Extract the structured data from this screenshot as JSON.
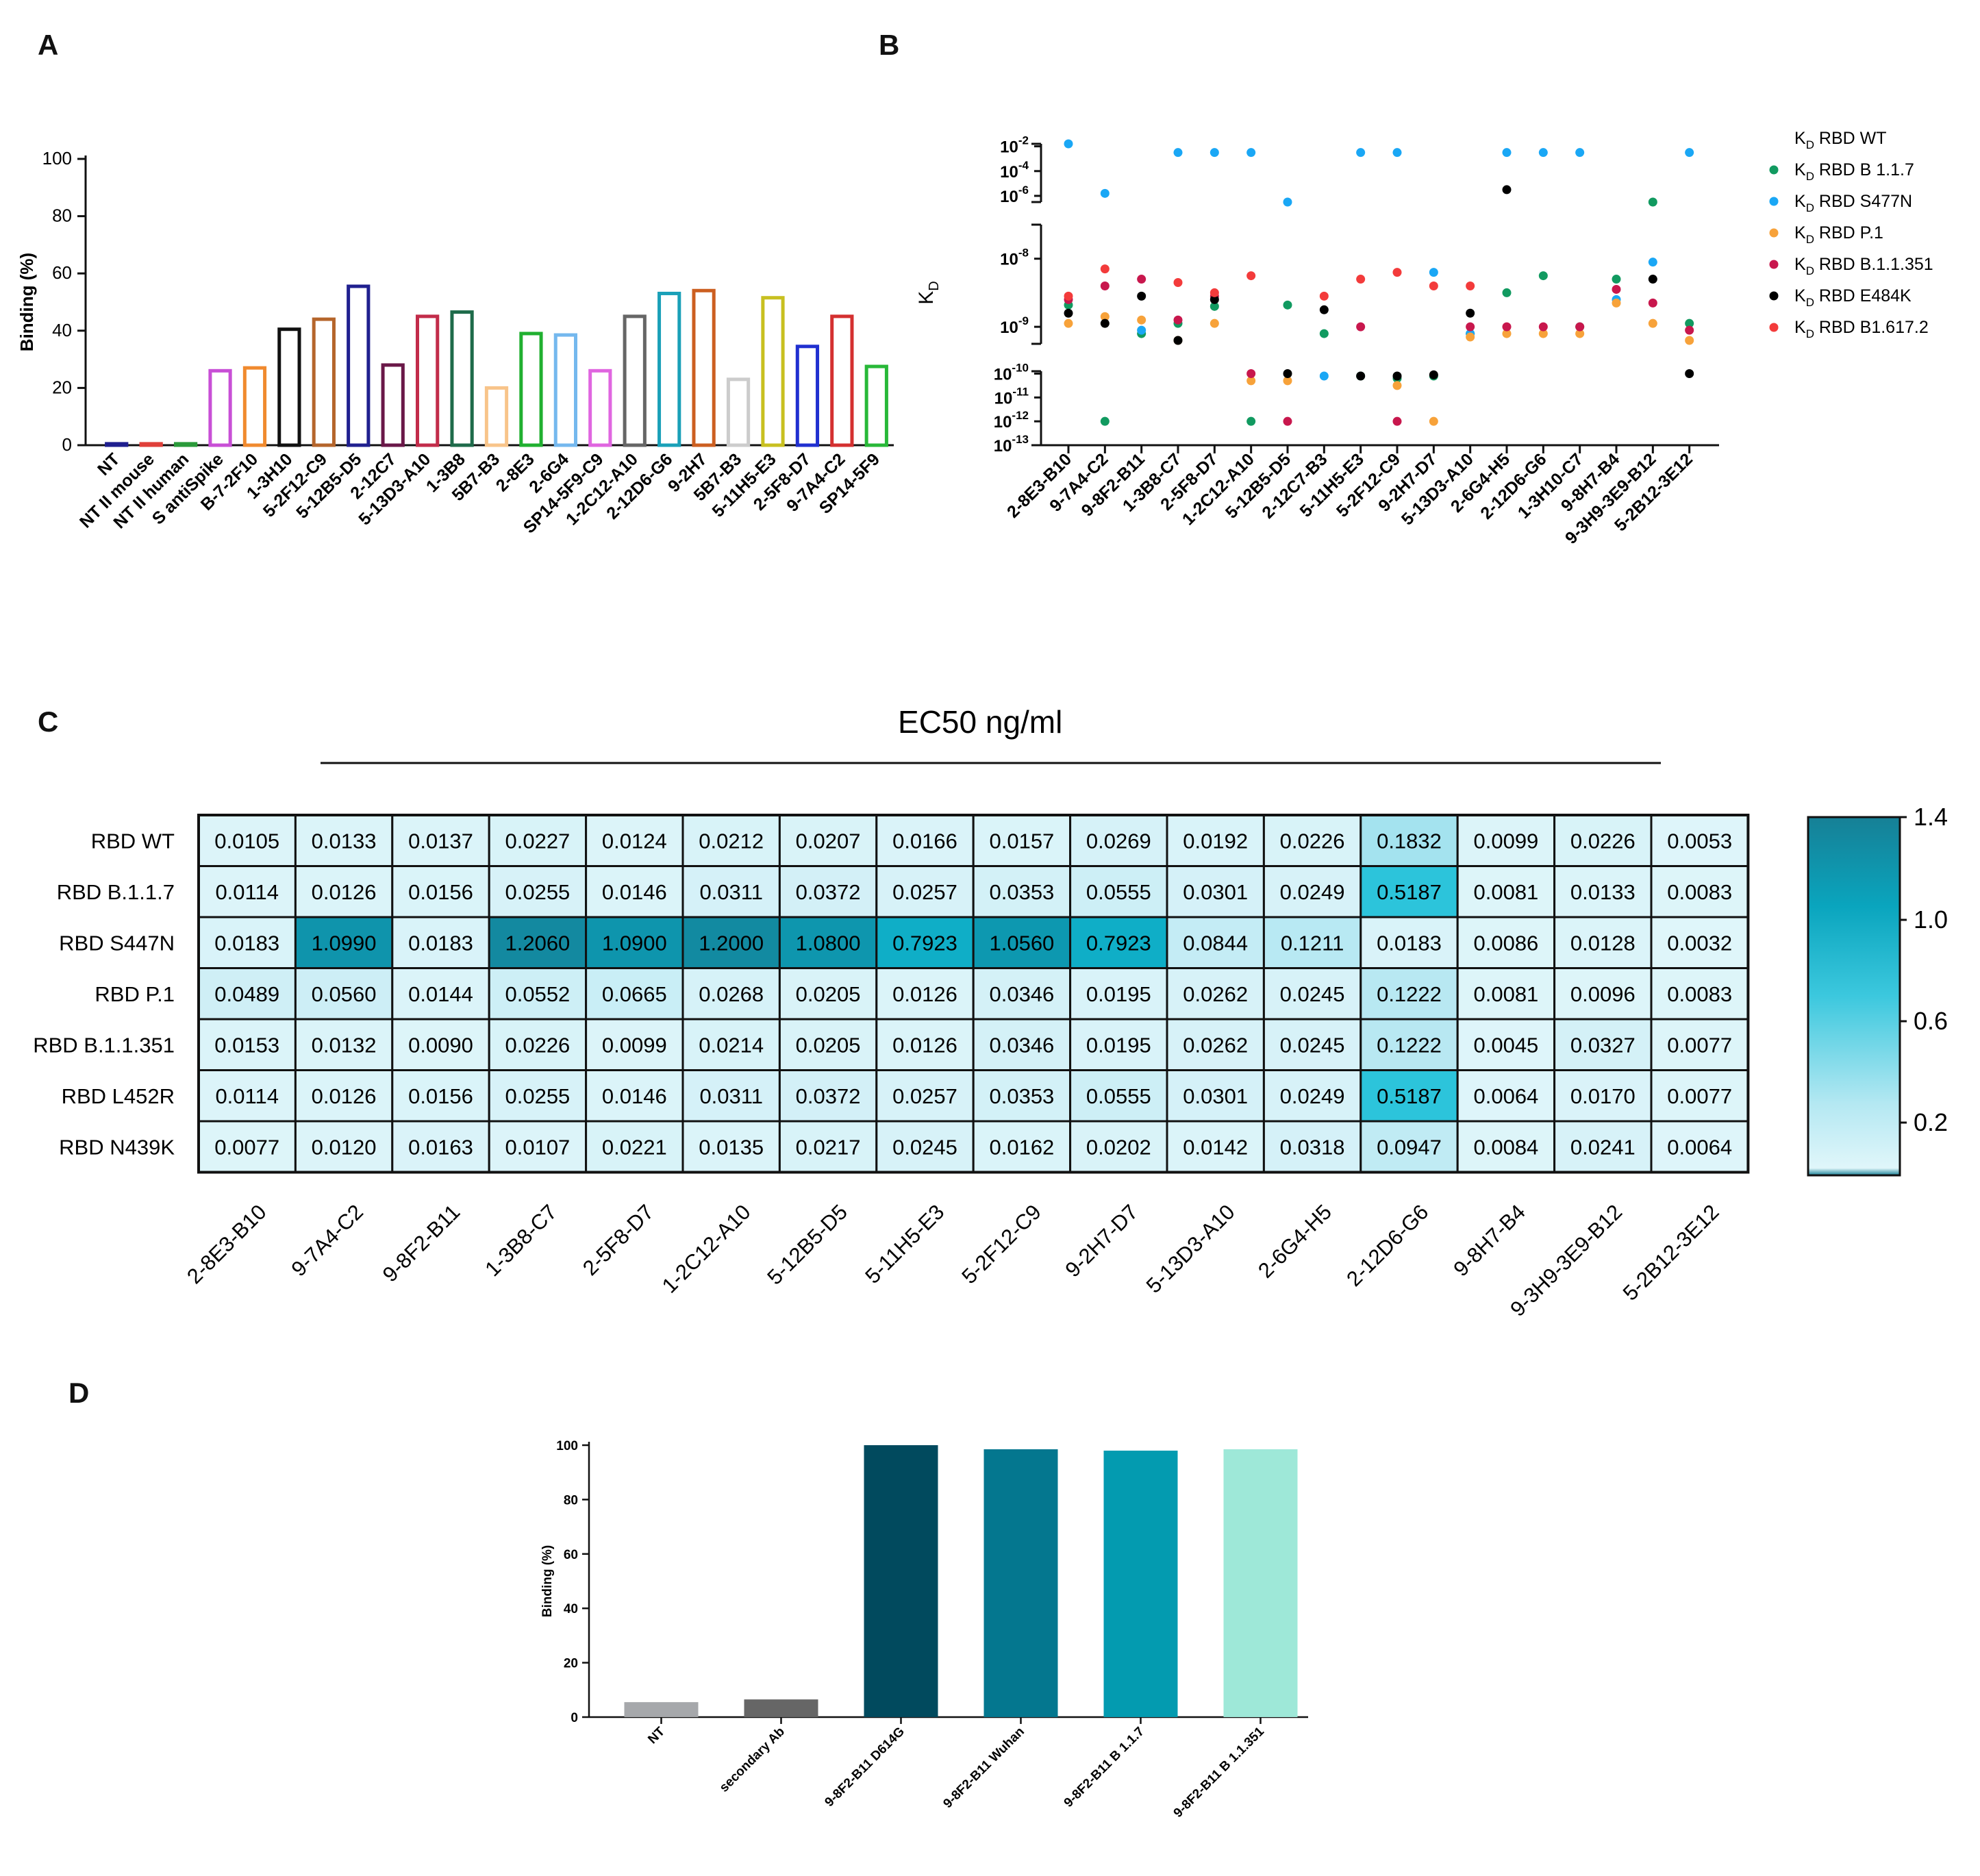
{
  "panels": {
    "a": "A",
    "b": "B",
    "c": "C",
    "d": "D"
  },
  "chart_data": [
    {
      "id": "A",
      "type": "bar",
      "ylabel": "Binding  (%)",
      "ylim": [
        0,
        100
      ],
      "yticks": [
        0,
        20,
        40,
        60,
        80,
        100
      ],
      "categories": [
        "NT",
        "NT II mouse",
        "NT II human",
        "S antiSpike",
        "B-7-2F10",
        "1-3H10",
        "5-2F12-C9",
        "5-12B5-D5",
        "2-12C7",
        "5-13D3-A10",
        "1-3B8",
        "5B7-B3",
        "2-8E3",
        "2-6G4",
        "SP14-5F9-C9",
        "1-2C12-A10",
        "2-12D6-G6",
        "9-2H7",
        "5B7-B3",
        "5-11H5-E3",
        "2-5F8-D7",
        "9-7A4-C2",
        "SP14-5F9"
      ],
      "values": [
        0.5,
        0.5,
        0.5,
        26,
        27,
        40.5,
        44,
        55.5,
        28,
        45,
        46.5,
        20,
        39,
        38.5,
        26,
        45,
        53,
        54,
        23,
        51.5,
        34.5,
        45,
        27.5
      ],
      "colors": [
        "#1f1f8f",
        "#e0403a",
        "#2a9a3a",
        "#c84fd6",
        "#f08a2e",
        "#111111",
        "#b5652b",
        "#20208f",
        "#6a1848",
        "#c22c4a",
        "#1e6b4a",
        "#f8c48a",
        "#20b030",
        "#74b8ee",
        "#e066e0",
        "#666666",
        "#1aa0b8",
        "#cc5f20",
        "#cccccc",
        "#c8c020",
        "#2030d0",
        "#d43030",
        "#28b838"
      ]
    },
    {
      "id": "B",
      "type": "scatter",
      "ylabel": "K_D",
      "categories": [
        "2-8E3-B10",
        "9-7A4-C2",
        "9-8F2-B11",
        "1-3B8-C7",
        "2-5F8-D7",
        "1-2C12-A10",
        "5-12B5-D5",
        "2-12C7-B3",
        "5-11H5-E3",
        "5-2F12-C9",
        "9-2H7-D7",
        "5-13D3-A10",
        "2-6G4-H5",
        "2-12D6-G6",
        "1-3H10-C7",
        "9-8H7-B4",
        "9-3H9-3E9-B12",
        "5-2B12-3E12"
      ],
      "yticks": [
        "10-2",
        "10-4",
        "10-6",
        "10-8",
        "10-9",
        "10-10",
        "10-11",
        "10-12",
        "10-13"
      ],
      "legend": [
        {
          "name": "RBD WT",
          "color": "#ffffff"
        },
        {
          "name": "RBD B 1.1.7",
          "color": "#119a60"
        },
        {
          "name": "RBD S477N",
          "color": "#1aa7f5"
        },
        {
          "name": "RBD P.1",
          "color": "#f7a23a"
        },
        {
          "name": "RBD B.1.1.351",
          "color": "#c8174d"
        },
        {
          "name": "RBD E484K",
          "color": "#000000"
        },
        {
          "name": "RBD B1.617.2",
          "color": "#f33b3b"
        }
      ],
      "legend_prefix": "K",
      "legend_sub": "D",
      "series": [
        {
          "name": "RBD B 1.1.7",
          "log10": [
            -8.68,
            -12,
            -9.1,
            -8.95,
            -8.7,
            -12,
            -8.68,
            -9.1,
            -10.1,
            -10.2,
            -10.1,
            -9.1,
            -8.5,
            -8.25,
            -9.0,
            -8.3,
            -6.5,
            -8.95
          ]
        },
        {
          "name": "RBD S477N",
          "log10": [
            -1.8,
            -5.8,
            -9.05,
            -2.5,
            -2.5,
            -2.5,
            -6.5,
            -10.1,
            -2.5,
            -2.5,
            -8.2,
            -9.1,
            -2.5,
            -2.5,
            -2.5,
            -8.6,
            -8.05,
            -2.5
          ]
        },
        {
          "name": "RBD P.1",
          "log10": [
            -8.95,
            -8.85,
            -8.9,
            -9.2,
            -8.95,
            -10.3,
            -10.3,
            null,
            null,
            -10.5,
            -12,
            -9.15,
            -9.1,
            -9.1,
            -9.1,
            -8.65,
            -8.95,
            -9.2
          ]
        },
        {
          "name": "RBD B.1.1.351",
          "log10": [
            -8.6,
            -8.4,
            -8.3,
            -8.9,
            -8.55,
            -10.0,
            -12,
            null,
            -9.0,
            -12,
            null,
            -9.0,
            -9.0,
            -9.0,
            -9.0,
            -8.45,
            -8.65,
            -9.05
          ]
        },
        {
          "name": "RBD E484K",
          "log10": [
            -8.8,
            -8.95,
            -8.55,
            -9.2,
            -8.6,
            null,
            -10.0,
            -8.75,
            -10.1,
            -10.1,
            -10.05,
            -8.8,
            -5.5,
            null,
            null,
            null,
            -8.3,
            -10.0
          ]
        },
        {
          "name": "RBD B1.617.2",
          "log10": [
            -8.55,
            -8.15,
            null,
            -8.35,
            -8.5,
            -8.25,
            null,
            -8.55,
            -8.3,
            -8.2,
            -8.4,
            -8.4,
            null,
            null,
            null,
            null,
            null,
            null
          ]
        }
      ]
    },
    {
      "id": "C",
      "type": "heatmap",
      "title": "EC50 ng/ml",
      "rows": [
        "RBD WT",
        "RBD B.1.1.7",
        "RBD S447N",
        "RBD P.1",
        "RBD B.1.1.351",
        "RBD L452R",
        "RBD N439K"
      ],
      "columns": [
        "2-8E3-B10",
        "9-7A4-C2",
        "9-8F2-B11",
        "1-3B8-C7",
        "2-5F8-D7",
        "1-2C12-A10",
        "5-12B5-D5",
        "5-11H5-E3",
        "5-2F12-C9",
        "9-2H7-D7",
        "5-13D3-A10",
        "2-6G4-H5",
        "2-12D6-G6",
        "9-8H7-B4",
        "9-3H9-3E9-B12",
        "5-2B12-3E12"
      ],
      "values": [
        [
          "0.0105",
          "0.0133",
          "0.0137",
          "0.0227",
          "0.0124",
          "0.0212",
          "0.0207",
          "0.0166",
          "0.0157",
          "0.0269",
          "0.0192",
          "0.0226",
          "0.1832",
          "0.0099",
          "0.0226",
          "0.0053"
        ],
        [
          "0.0114",
          "0.0126",
          "0.0156",
          "0.0255",
          "0.0146",
          "0.0311",
          "0.0372",
          "0.0257",
          "0.0353",
          "0.0555",
          "0.0301",
          "0.0249",
          "0.5187",
          "0.0081",
          "0.0133",
          "0.0083"
        ],
        [
          "0.0183",
          "1.0990",
          "0.0183",
          "1.2060",
          "1.0900",
          "1.2000",
          "1.0800",
          "0.7923",
          "1.0560",
          "0.7923",
          "0.0844",
          "0.1211",
          "0.0183",
          "0.0086",
          "0.0128",
          "0.0032"
        ],
        [
          "0.0489",
          "0.0560",
          "0.0144",
          "0.0552",
          "0.0665",
          "0.0268",
          "0.0205",
          "0.0126",
          "0.0346",
          "0.0195",
          "0.0262",
          "0.0245",
          "0.1222",
          "0.0081",
          "0.0096",
          "0.0083"
        ],
        [
          "0.0153",
          "0.0132",
          "0.0090",
          "0.0226",
          "0.0099",
          "0.0214",
          "0.0205",
          "0.0126",
          "0.0346",
          "0.0195",
          "0.0262",
          "0.0245",
          "0.1222",
          "0.0045",
          "0.0327",
          "0.0077"
        ],
        [
          "0.0114",
          "0.0126",
          "0.0156",
          "0.0255",
          "0.0146",
          "0.0311",
          "0.0372",
          "0.0257",
          "0.0353",
          "0.0555",
          "0.0301",
          "0.0249",
          "0.5187",
          "0.0064",
          "0.0170",
          "0.0077"
        ],
        [
          "0.0077",
          "0.0120",
          "0.0163",
          "0.0107",
          "0.0221",
          "0.0135",
          "0.0217",
          "0.0245",
          "0.0162",
          "0.0202",
          "0.0142",
          "0.0318",
          "0.0947",
          "0.0084",
          "0.0241",
          "0.0064"
        ]
      ],
      "colorbar_ticks": [
        "1.4",
        "1.0",
        "0.6",
        "0.2"
      ]
    },
    {
      "id": "D",
      "type": "bar",
      "ylabel": "Binding (%)",
      "ylim": [
        0,
        100
      ],
      "yticks": [
        0,
        20,
        40,
        60,
        80,
        100
      ],
      "categories": [
        "NT",
        "secondary Ab",
        "9-8F2-B11 D614G",
        "9-8F2-B11 Wuhan",
        "9-8F2-B11 B 1.1.7",
        "9-8F2-B11 B 1.1.351"
      ],
      "values": [
        5.5,
        6.5,
        100,
        98.5,
        98,
        98.5
      ],
      "colors": [
        "#a6a8ab",
        "#666666",
        "#014a5e",
        "#04778f",
        "#039bb0",
        "#9ee8d8"
      ]
    }
  ]
}
